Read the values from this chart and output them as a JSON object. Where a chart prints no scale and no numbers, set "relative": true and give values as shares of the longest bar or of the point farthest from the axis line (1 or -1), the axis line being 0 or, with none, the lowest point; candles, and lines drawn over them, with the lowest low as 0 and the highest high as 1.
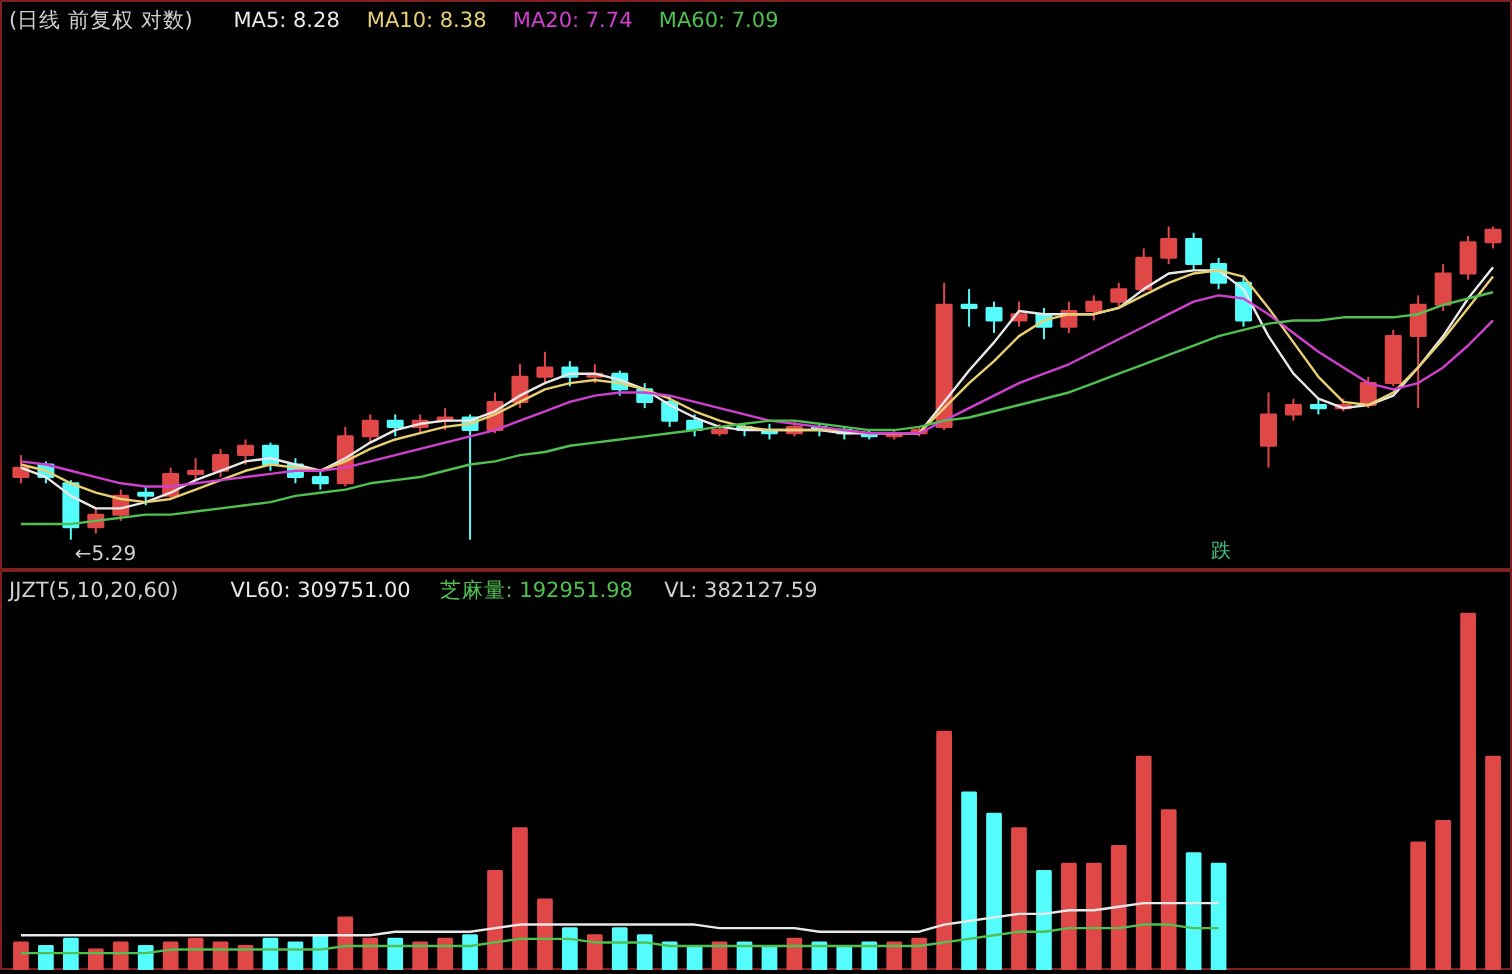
{
  "chart_data": [
    {
      "type": "candlestick",
      "title": "(日线 前复权 对数)",
      "relative": true,
      "legend": "top",
      "grid": false,
      "categories": [
        null,
        null,
        null,
        null,
        null,
        null,
        null,
        null,
        null,
        null,
        null,
        null,
        null,
        null,
        null,
        null,
        null,
        null,
        null,
        null,
        null,
        null,
        null,
        null,
        null,
        null,
        null,
        null,
        null,
        null,
        null,
        null,
        null,
        null,
        null,
        null,
        null,
        null,
        null,
        null,
        null,
        null,
        null,
        null,
        null,
        null,
        null,
        null,
        null,
        null,
        null,
        null,
        null,
        null,
        null,
        null,
        null,
        null,
        null,
        null
      ],
      "ohlc": [
        [
          0.2,
          0.27,
          0.18,
          0.23
        ],
        [
          0.24,
          0.25,
          0.18,
          0.2
        ],
        [
          0.18,
          0.19,
          0,
          0.04
        ],
        [
          0.04,
          0.1,
          0.02,
          0.08
        ],
        [
          0.08,
          0.16,
          0.06,
          0.14
        ],
        [
          0.15,
          0.17,
          0.11,
          0.14
        ],
        [
          0.14,
          0.23,
          0.13,
          0.21
        ],
        [
          0.21,
          0.26,
          0.19,
          0.22
        ],
        [
          0.22,
          0.29,
          0.2,
          0.27
        ],
        [
          0.27,
          0.32,
          0.24,
          0.3
        ],
        [
          0.3,
          0.31,
          0.22,
          0.24
        ],
        [
          0.24,
          0.26,
          0.18,
          0.2
        ],
        [
          0.2,
          0.22,
          0.16,
          0.18
        ],
        [
          0.18,
          0.36,
          0.17,
          0.33
        ],
        [
          0.33,
          0.4,
          0.31,
          0.38
        ],
        [
          0.38,
          0.4,
          0.33,
          0.36
        ],
        [
          0.36,
          0.4,
          0.34,
          0.38
        ],
        [
          0.38,
          0.42,
          0.35,
          0.39
        ],
        [
          0.39,
          0.4,
          0,
          0.35
        ],
        [
          0.35,
          0.47,
          0.34,
          0.44
        ],
        [
          0.44,
          0.56,
          0.42,
          0.52
        ],
        [
          0.52,
          0.6,
          0.5,
          0.55
        ],
        [
          0.55,
          0.57,
          0.49,
          0.52
        ],
        [
          0.52,
          0.56,
          0.5,
          0.53
        ],
        [
          0.53,
          0.54,
          0.46,
          0.48
        ],
        [
          0.48,
          0.5,
          0.42,
          0.44
        ],
        [
          0.44,
          0.46,
          0.36,
          0.38
        ],
        [
          0.38,
          0.4,
          0.33,
          0.35
        ],
        [
          0.34,
          0.37,
          0.33,
          0.35
        ],
        [
          0.36,
          0.37,
          0.33,
          0.35
        ],
        [
          0.35,
          0.37,
          0.32,
          0.34
        ],
        [
          0.34,
          0.38,
          0.33,
          0.36
        ],
        [
          0.36,
          0.37,
          0.33,
          0.35
        ],
        [
          0.35,
          0.36,
          0.32,
          0.34
        ],
        [
          0.34,
          0.35,
          0.32,
          0.33
        ],
        [
          0.33,
          0.35,
          0.32,
          0.34
        ],
        [
          0.34,
          0.36,
          0.33,
          0.35
        ],
        [
          0.36,
          0.82,
          0.35,
          0.75
        ],
        [
          0.75,
          0.8,
          0.68,
          0.74
        ],
        [
          0.74,
          0.76,
          0.66,
          0.7
        ],
        [
          0.7,
          0.76,
          0.68,
          0.72
        ],
        [
          0.72,
          0.74,
          0.64,
          0.68
        ],
        [
          0.68,
          0.76,
          0.66,
          0.73
        ],
        [
          0.73,
          0.78,
          0.7,
          0.76
        ],
        [
          0.76,
          0.82,
          0.74,
          0.8
        ],
        [
          0.8,
          0.93,
          0.79,
          0.9
        ],
        [
          0.9,
          1.0,
          0.88,
          0.96
        ],
        [
          0.96,
          0.98,
          0.86,
          0.88
        ],
        [
          0.88,
          0.9,
          0.8,
          0.82
        ],
        [
          0.82,
          0.84,
          0.68,
          0.7
        ],
        [
          0.3,
          0.47,
          0.23,
          0.4
        ],
        [
          0.4,
          0.45,
          0.38,
          0.43
        ],
        [
          0.43,
          0.45,
          0.4,
          0.42
        ],
        [
          0.42,
          0.45,
          0.41,
          0.43
        ],
        [
          0.43,
          0.52,
          0.42,
          0.5
        ],
        [
          0.5,
          0.67,
          0.49,
          0.65
        ],
        [
          0.65,
          0.78,
          0.42,
          0.75
        ],
        [
          0.75,
          0.88,
          0.73,
          0.85
        ],
        [
          0.85,
          0.97,
          0.83,
          0.95
        ],
        [
          0.95,
          1.0,
          0.93,
          0.99
        ]
      ],
      "colors": [
        "#e04848",
        "#54fcfc",
        "#54fcfc",
        "#e04848",
        "#e04848",
        "#54fcfc",
        "#e04848",
        "#e04848",
        "#e04848",
        "#e04848",
        "#54fcfc",
        "#54fcfc",
        "#54fcfc",
        "#e04848",
        "#e04848",
        "#54fcfc",
        "#e04848",
        "#e04848",
        "#54fcfc",
        "#e04848",
        "#e04848",
        "#e04848",
        "#54fcfc",
        "#e04848",
        "#54fcfc",
        "#54fcfc",
        "#54fcfc",
        "#54fcfc",
        "#e04848",
        "#54fcfc",
        "#54fcfc",
        "#e04848",
        "#54fcfc",
        "#54fcfc",
        "#54fcfc",
        "#e04848",
        "#e04848",
        "#e04848",
        "#54fcfc",
        "#54fcfc",
        "#e04848",
        "#54fcfc",
        "#e04848",
        "#e04848",
        "#e04848",
        "#e04848",
        "#e04848",
        "#54fcfc",
        "#54fcfc",
        "#54fcfc",
        "#e04848",
        "#e04848",
        "#54fcfc",
        "#e04848",
        "#e04848",
        "#e04848",
        "#e04848",
        "#e04848",
        "#e04848",
        "#e04848"
      ],
      "series": [
        {
          "type": "line",
          "name": "MA5: 8.28",
          "color": "#e8e8e8",
          "values": [
            0.23,
            0.2,
            0.14,
            0.1,
            0.1,
            0.12,
            0.15,
            0.19,
            0.22,
            0.25,
            0.26,
            0.24,
            0.22,
            0.26,
            0.31,
            0.35,
            0.37,
            0.38,
            0.38,
            0.41,
            0.46,
            0.5,
            0.53,
            0.53,
            0.51,
            0.48,
            0.43,
            0.39,
            0.36,
            0.35,
            0.35,
            0.35,
            0.35,
            0.34,
            0.34,
            0.34,
            0.34,
            0.44,
            0.54,
            0.63,
            0.73,
            0.72,
            0.72,
            0.72,
            0.74,
            0.8,
            0.85,
            0.86,
            0.86,
            0.8,
            0.65,
            0.53,
            0.45,
            0.42,
            0.43,
            0.46,
            0.55,
            0.65,
            0.77,
            0.87
          ]
        },
        {
          "type": "line",
          "name": "MA10: 8.38",
          "color": "#e8d070",
          "values": [
            0.24,
            0.22,
            0.18,
            0.15,
            0.13,
            0.12,
            0.13,
            0.16,
            0.19,
            0.22,
            0.24,
            0.23,
            0.22,
            0.25,
            0.29,
            0.32,
            0.34,
            0.36,
            0.37,
            0.4,
            0.44,
            0.48,
            0.5,
            0.51,
            0.5,
            0.48,
            0.45,
            0.41,
            0.38,
            0.36,
            0.35,
            0.35,
            0.35,
            0.35,
            0.34,
            0.34,
            0.34,
            0.42,
            0.5,
            0.57,
            0.65,
            0.7,
            0.72,
            0.72,
            0.74,
            0.78,
            0.82,
            0.85,
            0.86,
            0.84,
            0.74,
            0.63,
            0.52,
            0.44,
            0.43,
            0.47,
            0.55,
            0.64,
            0.74,
            0.84
          ]
        },
        {
          "type": "line",
          "name": "MA20: 7.74",
          "color": "#d040d0",
          "values": [
            0.25,
            0.24,
            0.22,
            0.2,
            0.18,
            0.17,
            0.17,
            0.18,
            0.19,
            0.2,
            0.21,
            0.22,
            0.22,
            0.23,
            0.25,
            0.27,
            0.29,
            0.31,
            0.33,
            0.35,
            0.38,
            0.41,
            0.44,
            0.46,
            0.47,
            0.47,
            0.46,
            0.44,
            0.42,
            0.4,
            0.38,
            0.37,
            0.36,
            0.35,
            0.34,
            0.34,
            0.34,
            0.38,
            0.42,
            0.46,
            0.5,
            0.53,
            0.56,
            0.6,
            0.64,
            0.68,
            0.72,
            0.76,
            0.78,
            0.77,
            0.72,
            0.66,
            0.6,
            0.55,
            0.5,
            0.48,
            0.5,
            0.55,
            0.62,
            0.7
          ]
        },
        {
          "type": "line",
          "name": "MA60: 7.09",
          "color": "#50c050",
          "values": [
            0.05,
            0.05,
            0.05,
            0.06,
            0.07,
            0.08,
            0.08,
            0.09,
            0.1,
            0.11,
            0.12,
            0.14,
            0.15,
            0.16,
            0.18,
            0.19,
            0.2,
            0.22,
            0.24,
            0.25,
            0.27,
            0.28,
            0.3,
            0.31,
            0.32,
            0.33,
            0.34,
            0.35,
            0.36,
            0.37,
            0.38,
            0.38,
            0.37,
            0.36,
            0.35,
            0.35,
            0.36,
            0.38,
            0.39,
            0.41,
            0.43,
            0.45,
            0.47,
            0.5,
            0.53,
            0.56,
            0.59,
            0.62,
            0.65,
            0.67,
            0.69,
            0.7,
            0.7,
            0.71,
            0.71,
            0.71,
            0.72,
            0.75,
            0.77,
            0.79
          ]
        }
      ],
      "annotations": [
        "←5.29",
        "跌"
      ]
    },
    {
      "type": "bar",
      "title": "JJZT(5,10,20,60)",
      "relative": true,
      "legend": "top",
      "grid": false,
      "categories": [
        null,
        null,
        null,
        null,
        null,
        null,
        null,
        null,
        null,
        null,
        null,
        null,
        null,
        null,
        null,
        null,
        null,
        null,
        null,
        null,
        null,
        null,
        null,
        null,
        null,
        null,
        null,
        null,
        null,
        null,
        null,
        null,
        null,
        null,
        null,
        null,
        null,
        null,
        null,
        null,
        null,
        null,
        null,
        null,
        null,
        null,
        null,
        null,
        null,
        null,
        null,
        null,
        null,
        null,
        null,
        null,
        null,
        null,
        null,
        null
      ],
      "values": [
        0.08,
        0.07,
        0.09,
        0.06,
        0.08,
        0.07,
        0.08,
        0.09,
        0.08,
        0.07,
        0.09,
        0.08,
        0.1,
        0.15,
        0.09,
        0.09,
        0.08,
        0.09,
        0.1,
        0.28,
        0.4,
        0.2,
        0.12,
        0.1,
        0.12,
        0.1,
        0.08,
        0.07,
        0.08,
        0.08,
        0.07,
        0.09,
        0.08,
        0.07,
        0.08,
        0.08,
        0.09,
        0.67,
        0.5,
        0.44,
        0.4,
        0.28,
        0.3,
        0.3,
        0.35,
        0.6,
        0.45,
        0.33,
        0.3,
        null,
        null,
        null,
        null,
        null,
        null,
        null,
        0.36,
        0.42,
        1.0,
        0.6
      ],
      "colors": [
        "#e04848",
        "#54fcfc",
        "#54fcfc",
        "#e04848",
        "#e04848",
        "#54fcfc",
        "#e04848",
        "#e04848",
        "#e04848",
        "#e04848",
        "#54fcfc",
        "#54fcfc",
        "#54fcfc",
        "#e04848",
        "#e04848",
        "#54fcfc",
        "#e04848",
        "#e04848",
        "#54fcfc",
        "#e04848",
        "#e04848",
        "#e04848",
        "#54fcfc",
        "#e04848",
        "#54fcfc",
        "#54fcfc",
        "#54fcfc",
        "#54fcfc",
        "#e04848",
        "#54fcfc",
        "#54fcfc",
        "#e04848",
        "#54fcfc",
        "#54fcfc",
        "#54fcfc",
        "#e04848",
        "#e04848",
        "#e04848",
        "#54fcfc",
        "#54fcfc",
        "#e04848",
        "#54fcfc",
        "#e04848",
        "#e04848",
        "#e04848",
        "#e04848",
        "#e04848",
        "#54fcfc",
        "#54fcfc",
        "#54fcfc",
        "#e04848",
        "#e04848",
        "#54fcfc",
        "#e04848",
        "#e04848",
        "#e04848",
        "#e04848",
        "#e04848",
        "#e04848",
        "#e04848"
      ],
      "series": [
        {
          "type": "line",
          "name": "VL60: 309751.00",
          "color": "#e8e8e8",
          "values": [
            0.1,
            0.1,
            0.1,
            0.1,
            0.1,
            0.1,
            0.1,
            0.1,
            0.1,
            0.1,
            0.1,
            0.1,
            0.1,
            0.1,
            0.1,
            0.11,
            0.11,
            0.11,
            0.11,
            0.12,
            0.13,
            0.13,
            0.13,
            0.13,
            0.13,
            0.13,
            0.13,
            0.13,
            0.12,
            0.12,
            0.12,
            0.12,
            0.11,
            0.11,
            0.11,
            0.11,
            0.11,
            0.13,
            0.14,
            0.15,
            0.16,
            0.16,
            0.17,
            0.17,
            0.18,
            0.19,
            0.19,
            0.19,
            0.19,
            null,
            null,
            null,
            null,
            null,
            null,
            null,
            null,
            null,
            null,
            null
          ]
        },
        {
          "type": "line",
          "name": "芝麻量: 192951.98",
          "color": "#50c050",
          "values": [
            0.05,
            0.05,
            0.05,
            0.05,
            0.05,
            0.05,
            0.06,
            0.06,
            0.06,
            0.06,
            0.06,
            0.06,
            0.06,
            0.07,
            0.07,
            0.07,
            0.07,
            0.07,
            0.07,
            0.08,
            0.09,
            0.09,
            0.09,
            0.08,
            0.08,
            0.08,
            0.07,
            0.07,
            0.07,
            0.07,
            0.07,
            0.07,
            0.07,
            0.07,
            0.07,
            0.07,
            0.07,
            0.08,
            0.09,
            0.1,
            0.11,
            0.11,
            0.12,
            0.12,
            0.12,
            0.13,
            0.13,
            0.12,
            0.12,
            null,
            null,
            null,
            null,
            null,
            null,
            null,
            null,
            null,
            null,
            null
          ]
        }
      ],
      "annotations": [
        "VL: 382127.59"
      ]
    }
  ]
}
